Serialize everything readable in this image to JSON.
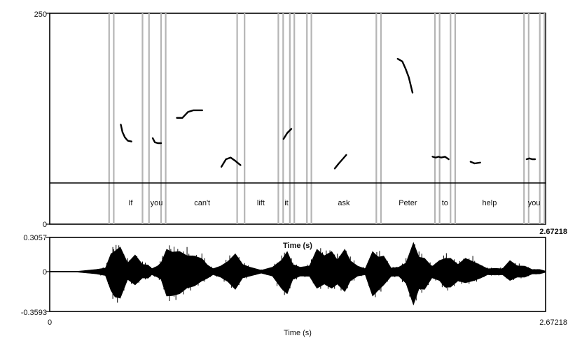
{
  "chart_data": [
    {
      "type": "line",
      "panel": "pitch",
      "ylim": [
        0,
        250
      ],
      "xlim": [
        0,
        2.67218
      ],
      "y_tick_labels": [
        "250",
        "0"
      ],
      "x_tick_labels": [
        "2.67218"
      ],
      "xlabel": "Time (s)",
      "series": [
        {
          "values": [
            [
              0.383,
              118
            ],
            [
              0.392,
              109
            ],
            [
              0.405,
              103
            ],
            [
              0.42,
              99
            ],
            [
              0.44,
              98
            ]
          ]
        },
        {
          "values": [
            [
              0.555,
              102
            ],
            [
              0.567,
              97
            ],
            [
              0.583,
              96
            ],
            [
              0.6,
              96
            ]
          ]
        },
        {
          "values": [
            [
              0.685,
              126
            ],
            [
              0.715,
              126
            ],
            [
              0.745,
              133
            ],
            [
              0.775,
              135
            ],
            [
              0.822,
              135
            ]
          ]
        },
        {
          "values": [
            [
              0.925,
              68
            ],
            [
              0.95,
              77
            ],
            [
              0.975,
              79
            ],
            [
              1.0,
              75
            ],
            [
              1.028,
              70
            ]
          ]
        },
        {
          "values": [
            [
              1.26,
              101
            ],
            [
              1.28,
              108
            ],
            [
              1.302,
              113
            ]
          ]
        },
        {
          "values": [
            [
              1.536,
              66
            ],
            [
              1.558,
              72
            ],
            [
              1.578,
              77
            ],
            [
              1.598,
              82
            ]
          ]
        },
        {
          "values": [
            [
              1.875,
              196
            ],
            [
              1.9,
              193
            ],
            [
              1.918,
              184
            ],
            [
              1.935,
              174
            ],
            [
              1.955,
              156
            ]
          ]
        },
        {
          "values": [
            [
              2.063,
              80
            ],
            [
              2.08,
              79
            ],
            [
              2.095,
              80
            ],
            [
              2.11,
              79
            ],
            [
              2.13,
              80
            ],
            [
              2.15,
              77
            ]
          ]
        },
        {
          "values": [
            [
              2.268,
              74
            ],
            [
              2.29,
              72
            ],
            [
              2.32,
              73
            ]
          ]
        },
        {
          "values": [
            [
              2.57,
              77
            ],
            [
              2.585,
              78
            ],
            [
              2.6,
              77
            ],
            [
              2.615,
              77
            ]
          ]
        }
      ],
      "boundaries": [
        0.32,
        0.345,
        0.5,
        0.535,
        0.6,
        0.625,
        1.01,
        1.05,
        1.232,
        1.258,
        1.294,
        1.318,
        1.386,
        1.41,
        1.76,
        1.785,
        2.076,
        2.101,
        2.16,
        2.185,
        2.556,
        2.581,
        2.641,
        2.666
      ]
    },
    {
      "type": "table",
      "panel": "word-tier",
      "words": [
        {
          "label": "If",
          "start": 0.333,
          "end": 0.538
        },
        {
          "label": "you",
          "start": 0.538,
          "end": 0.613
        },
        {
          "label": "can't",
          "start": 0.613,
          "end": 1.03
        },
        {
          "label": "lift",
          "start": 1.03,
          "end": 1.245
        },
        {
          "label": "it",
          "start": 1.245,
          "end": 1.306
        },
        {
          "label": "",
          "start": 1.306,
          "end": 1.398
        },
        {
          "label": "ask",
          "start": 1.398,
          "end": 1.772
        },
        {
          "label": "Peter",
          "start": 1.772,
          "end": 2.088
        },
        {
          "label": "to",
          "start": 2.088,
          "end": 2.172
        },
        {
          "label": "help",
          "start": 2.172,
          "end": 2.568
        },
        {
          "label": "you",
          "start": 2.568,
          "end": 2.653
        }
      ]
    },
    {
      "type": "area",
      "panel": "waveform",
      "ylim": [
        -0.3593,
        0.3057
      ],
      "xlim": [
        0,
        2.67218
      ],
      "y_tick_labels": [
        "0.3057",
        "0",
        "-0.3593"
      ],
      "x_tick_labels": [
        "0",
        "2.67218"
      ],
      "xlabel": "Time (s)",
      "envelope": [
        [
          0.0,
          0.004,
          -0.004
        ],
        [
          0.15,
          0.006,
          -0.006
        ],
        [
          0.25,
          0.02,
          -0.02
        ],
        [
          0.3,
          0.05,
          -0.05
        ],
        [
          0.33,
          0.16,
          -0.17
        ],
        [
          0.35,
          0.28,
          -0.32
        ],
        [
          0.38,
          0.22,
          -0.24
        ],
        [
          0.42,
          0.12,
          -0.1
        ],
        [
          0.46,
          0.15,
          -0.12
        ],
        [
          0.5,
          0.1,
          -0.08
        ],
        [
          0.53,
          0.06,
          -0.06
        ],
        [
          0.55,
          0.04,
          -0.04
        ],
        [
          0.58,
          0.05,
          -0.05
        ],
        [
          0.6,
          0.12,
          -0.1
        ],
        [
          0.63,
          0.2,
          -0.22
        ],
        [
          0.66,
          0.27,
          -0.31
        ],
        [
          0.7,
          0.18,
          -0.2
        ],
        [
          0.74,
          0.22,
          -0.21
        ],
        [
          0.78,
          0.14,
          -0.13
        ],
        [
          0.82,
          0.18,
          -0.12
        ],
        [
          0.85,
          0.06,
          -0.06
        ],
        [
          0.88,
          0.04,
          -0.04
        ],
        [
          0.92,
          0.05,
          -0.05
        ],
        [
          0.96,
          0.14,
          -0.13
        ],
        [
          1.0,
          0.16,
          -0.16
        ],
        [
          1.04,
          0.1,
          -0.08
        ],
        [
          1.08,
          0.04,
          -0.04
        ],
        [
          1.14,
          0.02,
          -0.02
        ],
        [
          1.2,
          0.04,
          -0.04
        ],
        [
          1.25,
          0.16,
          -0.22
        ],
        [
          1.28,
          0.18,
          -0.2
        ],
        [
          1.31,
          0.1,
          -0.1
        ],
        [
          1.35,
          0.04,
          -0.04
        ],
        [
          1.4,
          0.08,
          -0.06
        ],
        [
          1.44,
          0.2,
          -0.15
        ],
        [
          1.48,
          0.22,
          -0.16
        ],
        [
          1.52,
          0.18,
          -0.15
        ],
        [
          1.55,
          0.16,
          -0.16
        ],
        [
          1.59,
          0.2,
          -0.18
        ],
        [
          1.62,
          0.15,
          -0.12
        ],
        [
          1.66,
          0.05,
          -0.04
        ],
        [
          1.7,
          0.04,
          -0.04
        ],
        [
          1.74,
          0.18,
          -0.22
        ],
        [
          1.77,
          0.2,
          -0.24
        ],
        [
          1.8,
          0.14,
          -0.12
        ],
        [
          1.84,
          0.05,
          -0.06
        ],
        [
          1.88,
          0.04,
          -0.04
        ],
        [
          1.92,
          0.12,
          -0.15
        ],
        [
          1.96,
          0.26,
          -0.3
        ],
        [
          1.99,
          0.2,
          -0.22
        ],
        [
          2.02,
          0.12,
          -0.16
        ],
        [
          2.06,
          0.07,
          -0.08
        ],
        [
          2.1,
          0.1,
          -0.08
        ],
        [
          2.13,
          0.18,
          -0.2
        ],
        [
          2.16,
          0.12,
          -0.14
        ],
        [
          2.2,
          0.1,
          -0.12
        ],
        [
          2.24,
          0.12,
          -0.1
        ],
        [
          2.28,
          0.14,
          -0.12
        ],
        [
          2.32,
          0.06,
          -0.06
        ],
        [
          2.36,
          0.04,
          -0.04
        ],
        [
          2.4,
          0.03,
          -0.03
        ],
        [
          2.44,
          0.04,
          -0.04
        ],
        [
          2.48,
          0.1,
          -0.08
        ],
        [
          2.52,
          0.08,
          -0.07
        ],
        [
          2.56,
          0.05,
          -0.05
        ],
        [
          2.6,
          0.03,
          -0.03
        ],
        [
          2.64,
          0.02,
          -0.02
        ],
        [
          2.67,
          0.01,
          -0.01
        ]
      ]
    }
  ]
}
